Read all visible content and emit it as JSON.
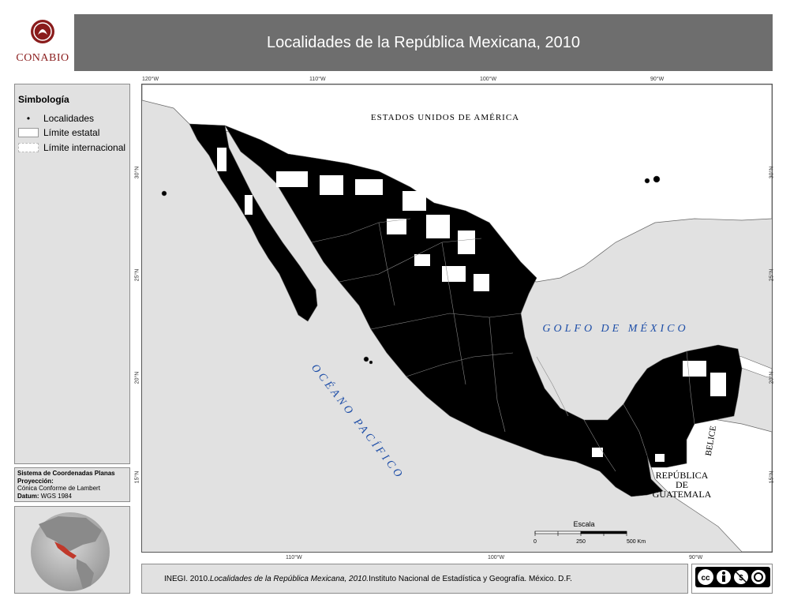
{
  "header": {
    "logo_text": "CONABIO",
    "title": "Localidades de la República Mexicana, 2010"
  },
  "legend": {
    "title": "Simbología",
    "items": [
      {
        "symbol": "dot",
        "label": "Localidades"
      },
      {
        "symbol": "state-boundary",
        "label": "Límite estatal"
      },
      {
        "symbol": "international-boundary",
        "label": "Límite internacional"
      }
    ]
  },
  "coordinates": {
    "system": "Sistema de Coordenadas Planas",
    "projection_label": "Proyección:",
    "projection": "Cónica Conforme de Lambert",
    "datum_label": "Datum:",
    "datum": "WGS 1984"
  },
  "map": {
    "labels": {
      "usa": "ESTADOS UNIDOS DE AMÉRICA",
      "gulf": "GOLFO DE MÉXICO",
      "pacific": "OCÉANO PACÍFICO",
      "belize": "BELICE",
      "guatemala_1": "REPÚBLICA",
      "guatemala_2": "DE",
      "guatemala_3": "GUATEMALA"
    },
    "ticks": {
      "top": [
        "120°W",
        "110°W",
        "100°W",
        "90°W"
      ],
      "bottom": [
        "110°W",
        "100°W",
        "90°W"
      ],
      "left": [
        "30°N",
        "25°N",
        "20°N",
        "15°N"
      ],
      "right": [
        "30°N",
        "25°N",
        "20°N",
        "15°N"
      ]
    },
    "scale": {
      "title": "Escala",
      "labels": [
        "0",
        "250",
        "500 Km"
      ]
    },
    "colors": {
      "land_mexico": "#000000",
      "land_other": "#ffffff",
      "sea": "#e1e1e1",
      "ocean_label": "#1f4fa8"
    }
  },
  "footer": {
    "citation_prefix": "INEGI. 2010. ",
    "citation_title": "Localidades de la República Mexicana, 2010.",
    "citation_suffix": " Instituto Nacional de Estadística y Geografía. México. D.F."
  },
  "license": {
    "icons": [
      "cc-icon",
      "by-icon",
      "nc-icon",
      "sa-icon"
    ]
  }
}
